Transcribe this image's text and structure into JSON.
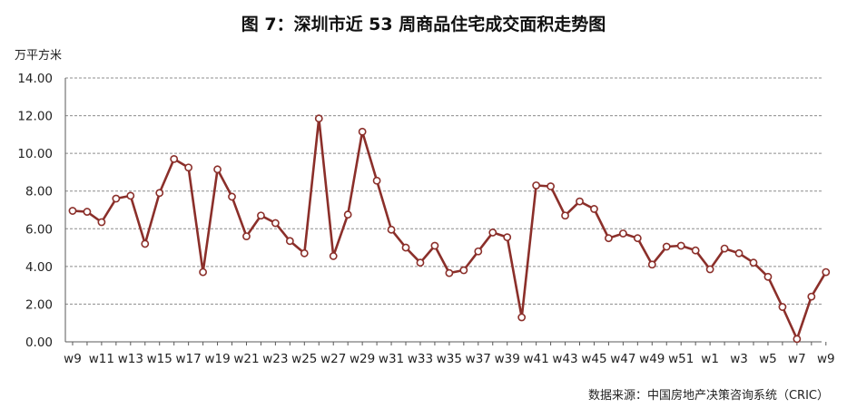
{
  "title": "图 7：深圳市近 53 周商品住宅成交面积走势图",
  "unit": "万平方米",
  "source": "数据来源：中国房地产决策咨询系统（CRIC）",
  "colors": {
    "line": "#8b2f2a",
    "marker_fill": "#ffffff",
    "grid": "#8c8c8c",
    "axis": "#595959"
  },
  "chart_data": {
    "type": "line",
    "title": "图 7：深圳市近 53 周商品住宅成交面积走势图",
    "ylabel": "万平方米",
    "xlabel": "",
    "ylim": [
      0,
      14
    ],
    "yticks": [
      "0.00",
      "2.00",
      "4.00",
      "6.00",
      "8.00",
      "10.00",
      "12.00",
      "14.00"
    ],
    "grid": true,
    "x": [
      "w9",
      "w10",
      "w11",
      "w12",
      "w13",
      "w14",
      "w15",
      "w16",
      "w17",
      "w18",
      "w19",
      "w20",
      "w21",
      "w22",
      "w23",
      "w24",
      "w25",
      "w26",
      "w27",
      "w28",
      "w29",
      "w30",
      "w31",
      "w32",
      "w33",
      "w34",
      "w35",
      "w36",
      "w37",
      "w38",
      "w39",
      "w40",
      "w41",
      "w42",
      "w43",
      "w44",
      "w45",
      "w46",
      "w47",
      "w48",
      "w49",
      "w50",
      "w51",
      "w52",
      "w1",
      "w2",
      "w3",
      "w4",
      "w5",
      "w6",
      "w7",
      "w8",
      "w9"
    ],
    "x_tick_labels": [
      "w9",
      "w11",
      "w13",
      "w15",
      "w17",
      "w19",
      "w21",
      "w23",
      "w25",
      "w27",
      "w29",
      "w31",
      "w33",
      "w35",
      "w37",
      "w39",
      "w41",
      "w43",
      "w45",
      "w47",
      "w49",
      "w51",
      "w1",
      "w3",
      "w5",
      "w7",
      "w9"
    ],
    "series": [
      {
        "values": [
          6.95,
          6.9,
          6.35,
          7.6,
          7.75,
          5.2,
          7.9,
          9.7,
          9.25,
          3.7,
          9.15,
          7.7,
          5.6,
          6.7,
          6.3,
          5.35,
          4.7,
          11.85,
          4.55,
          6.75,
          11.15,
          8.55,
          5.95,
          5.0,
          4.2,
          5.1,
          3.65,
          3.8,
          4.8,
          5.8,
          5.55,
          1.3,
          8.3,
          8.25,
          6.7,
          7.45,
          7.05,
          5.5,
          5.75,
          5.5,
          4.1,
          5.05,
          5.1,
          4.85,
          3.85,
          4.95,
          4.7,
          4.2,
          3.45,
          1.85,
          0.15,
          2.4,
          3.7
        ]
      }
    ]
  }
}
